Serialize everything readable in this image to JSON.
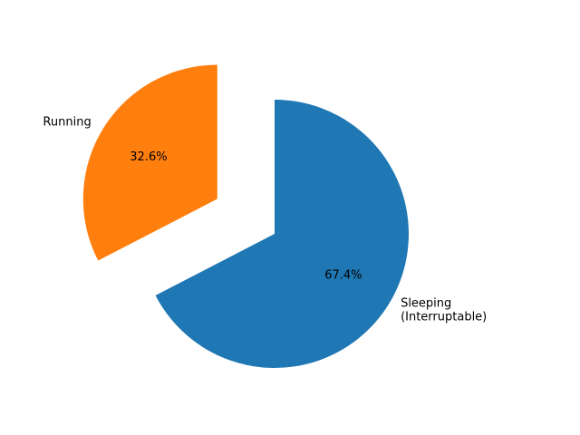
{
  "chart_data": {
    "type": "pie",
    "title": "",
    "start_angle_deg": 90,
    "direction": "counterclockwise",
    "slices": [
      {
        "label": "Running",
        "label_lines": [
          "Running"
        ],
        "value": 32.6,
        "pct_label": "32.6%",
        "color": "#ff7f0e",
        "exploded": true
      },
      {
        "label": "Sleeping (Interruptable)",
        "label_lines": [
          "Sleeping",
          "(Interruptable)"
        ],
        "value": 67.4,
        "pct_label": "67.4%",
        "color": "#1f77b4",
        "exploded": false
      }
    ]
  }
}
